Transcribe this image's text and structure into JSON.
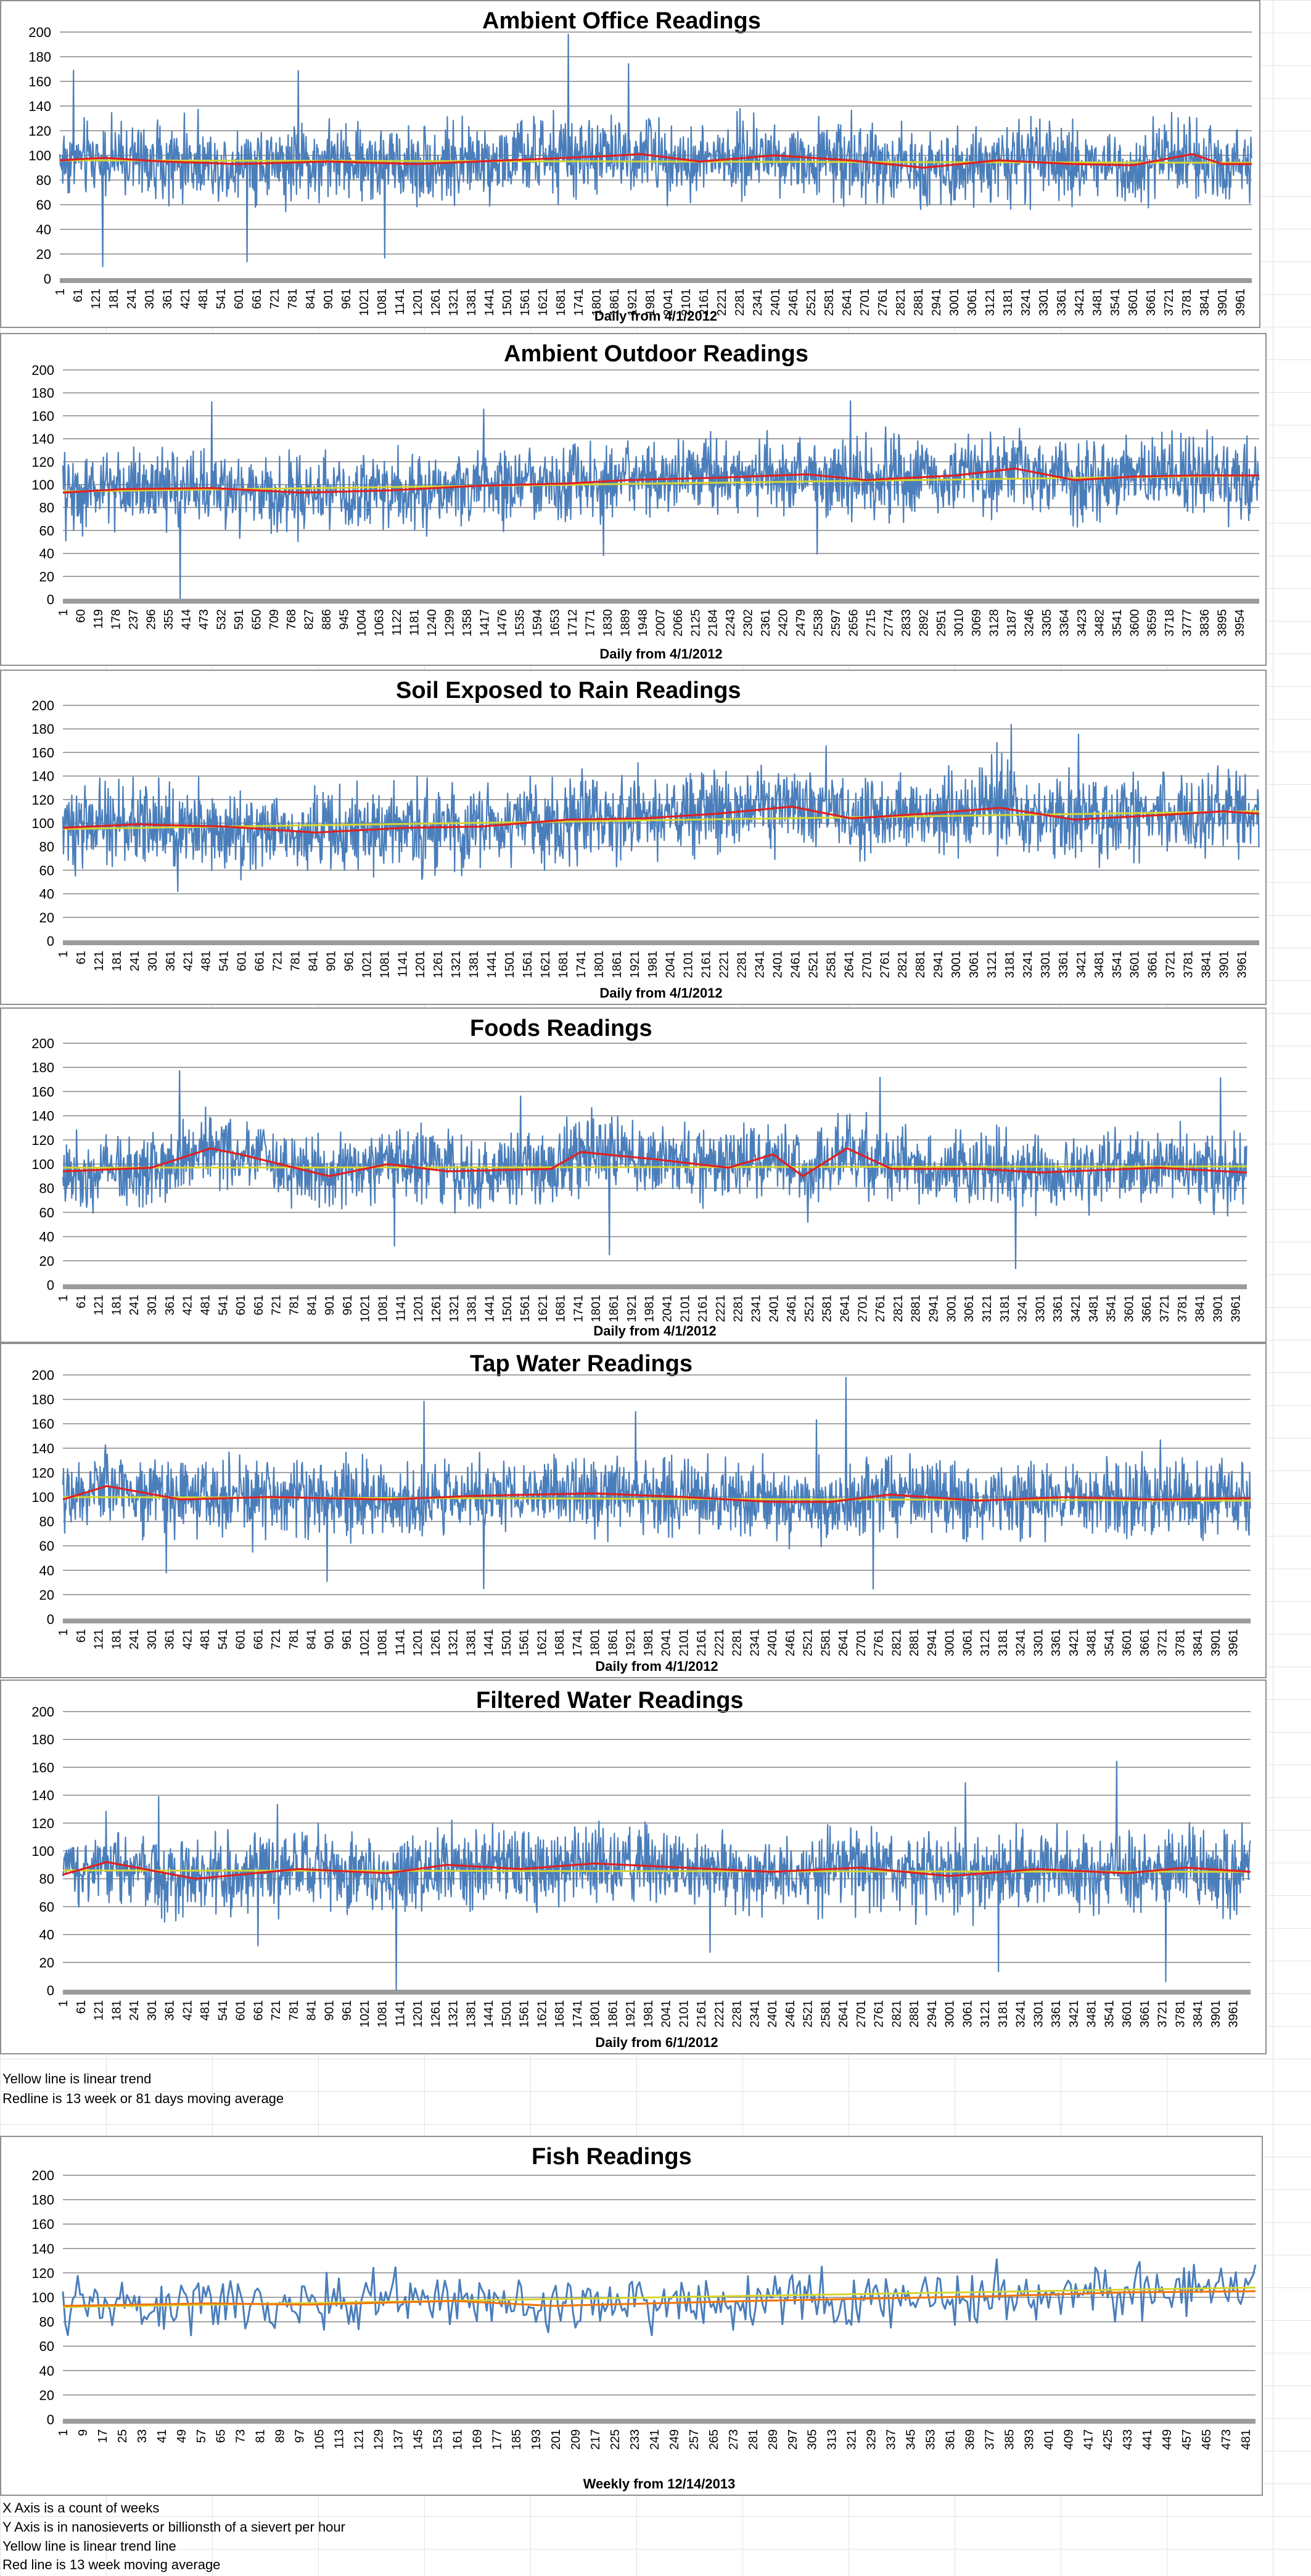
{
  "colors": {
    "series": "#4a7ebb",
    "moving_average": "#e02020",
    "moving_average_fish": "#f07810",
    "trend": "#d6d630",
    "gridline": "#868686",
    "axis_band": "#9b9b9b"
  },
  "notes_middle": [
    "Yellow line is linear trend",
    "Redline is 13 week or 81 days moving average"
  ],
  "notes_bottom": [
    "X Axis is a count of weeks",
    "Y Axis is in nanosieverts or billionsth of a sievert per hour",
    "Yellow line is linear trend line",
    "Red line is 13 week moving average"
  ],
  "chart_data": [
    {
      "type": "line",
      "title": "Ambient Office Readings",
      "xlabel": "Daily from 4/1/2012",
      "ylabel": "",
      "ylim": [
        0,
        200
      ],
      "yticks": [
        0,
        20,
        40,
        60,
        80,
        100,
        120,
        140,
        160,
        180,
        200
      ],
      "x_count": 4000,
      "x_tick_start": 1,
      "x_tick_step": 60,
      "x_ticks": [
        "1",
        "61",
        "121",
        "181",
        "241",
        "301",
        "361",
        "421",
        "481",
        "541",
        "601",
        "661",
        "721",
        "781",
        "841",
        "901",
        "961",
        "1021",
        "1081",
        "1141",
        "1201",
        "1261",
        "1321",
        "1381",
        "1441",
        "1501",
        "1561",
        "1621",
        "1681",
        "1741",
        "1801",
        "1861",
        "1921",
        "1981",
        "2041",
        "2101",
        "2161",
        "2221",
        "2281",
        "2341",
        "2401",
        "2461",
        "2521",
        "2581",
        "2641",
        "2701",
        "2761",
        "2821",
        "2881",
        "2941",
        "3001",
        "3061",
        "3121",
        "3181",
        "3241",
        "3301",
        "3361",
        "3421",
        "3481",
        "3541",
        "3601",
        "3661",
        "3721",
        "3781",
        "3841",
        "3901",
        "3961"
      ],
      "series_mean": 95,
      "series_spread": 22,
      "moving_average": [
        [
          1,
          96
        ],
        [
          150,
          98
        ],
        [
          350,
          95
        ],
        [
          600,
          93
        ],
        [
          900,
          95
        ],
        [
          1200,
          93
        ],
        [
          1500,
          96
        ],
        [
          1800,
          99
        ],
        [
          1950,
          101
        ],
        [
          2150,
          95
        ],
        [
          2400,
          100
        ],
        [
          2650,
          96
        ],
        [
          2900,
          90
        ],
        [
          3150,
          96
        ],
        [
          3400,
          93
        ],
        [
          3600,
          92
        ],
        [
          3800,
          101
        ],
        [
          3900,
          93
        ],
        [
          4000,
          93
        ]
      ],
      "trend": [
        96,
        94
      ]
    },
    {
      "type": "line",
      "title": "Ambient Outdoor Readings",
      "xlabel": "Daily from 4/1/2012",
      "ylabel": "",
      "ylim": [
        0,
        200
      ],
      "yticks": [
        0,
        20,
        40,
        60,
        80,
        100,
        120,
        140,
        160,
        180,
        200
      ],
      "x_count": 4020,
      "x_tick_start": 1,
      "x_tick_step": 59,
      "x_ticks": [
        "1",
        "60",
        "119",
        "178",
        "237",
        "296",
        "355",
        "414",
        "473",
        "532",
        "591",
        "650",
        "709",
        "768",
        "827",
        "886",
        "945",
        "1004",
        "1063",
        "1122",
        "1181",
        "1240",
        "1299",
        "1358",
        "1417",
        "1476",
        "1535",
        "1594",
        "1653",
        "1712",
        "1771",
        "1830",
        "1889",
        "1948",
        "2007",
        "2066",
        "2125",
        "2184",
        "2243",
        "2302",
        "2361",
        "2420",
        "2479",
        "2538",
        "2597",
        "2656",
        "2715",
        "2774",
        "2833",
        "2892",
        "2951",
        "3010",
        "3069",
        "3128",
        "3187",
        "3246",
        "3305",
        "3364",
        "3423",
        "3482",
        "3541",
        "3600",
        "3659",
        "3718",
        "3777",
        "3836",
        "3895",
        "3954"
      ],
      "series_mean": 100,
      "series_spread": 24,
      "moving_average": [
        [
          1,
          93
        ],
        [
          200,
          96
        ],
        [
          500,
          97
        ],
        [
          800,
          93
        ],
        [
          1100,
          95
        ],
        [
          1400,
          99
        ],
        [
          1700,
          101
        ],
        [
          1900,
          104
        ],
        [
          2200,
          106
        ],
        [
          2500,
          109
        ],
        [
          2700,
          104
        ],
        [
          3000,
          108
        ],
        [
          3200,
          114
        ],
        [
          3400,
          104
        ],
        [
          3600,
          107
        ],
        [
          3800,
          108
        ],
        [
          4020,
          108
        ]
      ],
      "trend": [
        94,
        108
      ]
    },
    {
      "type": "line",
      "title": "Soil Exposed to Rain Readings",
      "xlabel": "Daily from 4/1/2012",
      "ylabel": "",
      "ylim": [
        0,
        200
      ],
      "yticks": [
        0,
        20,
        40,
        60,
        80,
        100,
        120,
        140,
        160,
        180,
        200
      ],
      "x_count": 4020,
      "x_tick_start": 1,
      "x_tick_step": 60,
      "x_ticks": [
        "1",
        "61",
        "121",
        "181",
        "241",
        "301",
        "361",
        "421",
        "481",
        "541",
        "601",
        "661",
        "721",
        "781",
        "841",
        "901",
        "961",
        "1021",
        "1081",
        "1141",
        "1201",
        "1261",
        "1321",
        "1381",
        "1441",
        "1501",
        "1561",
        "1621",
        "1681",
        "1741",
        "1801",
        "1861",
        "1921",
        "1981",
        "2041",
        "2101",
        "2161",
        "2221",
        "2281",
        "2341",
        "2401",
        "2461",
        "2521",
        "2581",
        "2641",
        "2701",
        "2761",
        "2821",
        "2881",
        "2941",
        "3001",
        "3061",
        "3121",
        "3181",
        "3241",
        "3301",
        "3361",
        "3421",
        "3481",
        "3541",
        "3601",
        "3661",
        "3721",
        "3781",
        "3841",
        "3901",
        "3961"
      ],
      "series_mean": 102,
      "series_spread": 25,
      "moving_average": [
        [
          1,
          96
        ],
        [
          250,
          99
        ],
        [
          550,
          97
        ],
        [
          850,
          92
        ],
        [
          1150,
          96
        ],
        [
          1400,
          97
        ],
        [
          1700,
          103
        ],
        [
          1950,
          104
        ],
        [
          2200,
          108
        ],
        [
          2450,
          114
        ],
        [
          2650,
          104
        ],
        [
          2900,
          108
        ],
        [
          3150,
          113
        ],
        [
          3400,
          103
        ],
        [
          3700,
          107
        ],
        [
          3900,
          110
        ],
        [
          4020,
          108
        ]
      ],
      "trend": [
        95,
        110
      ]
    },
    {
      "type": "line",
      "title": "Foods Readings",
      "xlabel": "Daily from 4/1/2012",
      "ylabel": "",
      "ylim": [
        0,
        200
      ],
      "yticks": [
        0,
        20,
        40,
        60,
        80,
        100,
        120,
        140,
        160,
        180,
        200
      ],
      "x_count": 4000,
      "x_tick_start": 1,
      "x_tick_step": 60,
      "x_ticks": [
        "1",
        "61",
        "121",
        "181",
        "241",
        "301",
        "361",
        "421",
        "481",
        "541",
        "601",
        "661",
        "721",
        "781",
        "841",
        "901",
        "961",
        "1021",
        "1081",
        "1141",
        "1201",
        "1261",
        "1321",
        "1381",
        "1441",
        "1501",
        "1561",
        "1621",
        "1681",
        "1741",
        "1801",
        "1861",
        "1921",
        "1981",
        "2041",
        "2101",
        "2161",
        "2221",
        "2281",
        "2341",
        "2401",
        "2461",
        "2521",
        "2581",
        "2641",
        "2701",
        "2761",
        "2821",
        "2881",
        "2941",
        "3001",
        "3061",
        "3121",
        "3181",
        "3241",
        "3301",
        "3361",
        "3421",
        "3481",
        "3541",
        "3601",
        "3661",
        "3721",
        "3781",
        "3841",
        "3901",
        "3961"
      ],
      "series_mean": 98,
      "series_spread": 22,
      "moving_average": [
        [
          1,
          94
        ],
        [
          300,
          97
        ],
        [
          500,
          113
        ],
        [
          600,
          108
        ],
        [
          900,
          90
        ],
        [
          1100,
          100
        ],
        [
          1300,
          94
        ],
        [
          1650,
          96
        ],
        [
          1750,
          110
        ],
        [
          2000,
          104
        ],
        [
          2250,
          97
        ],
        [
          2400,
          108
        ],
        [
          2500,
          90
        ],
        [
          2650,
          113
        ],
        [
          2800,
          96
        ],
        [
          3100,
          96
        ],
        [
          3300,
          93
        ],
        [
          3700,
          97
        ],
        [
          4000,
          93
        ]
      ],
      "trend": [
        97,
        98
      ]
    },
    {
      "type": "line",
      "title": "Tap Water Readings",
      "xlabel": "Daily from 4/1/2012",
      "ylabel": "",
      "ylim": [
        0,
        200
      ],
      "yticks": [
        0,
        20,
        40,
        60,
        80,
        100,
        120,
        140,
        160,
        180,
        200
      ],
      "x_count": 4020,
      "x_tick_start": 1,
      "x_tick_step": 60,
      "x_ticks": [
        "1",
        "61",
        "121",
        "181",
        "241",
        "301",
        "361",
        "421",
        "481",
        "541",
        "601",
        "661",
        "721",
        "781",
        "841",
        "901",
        "961",
        "1021",
        "1081",
        "1141",
        "1201",
        "1261",
        "1321",
        "1381",
        "1441",
        "1501",
        "1561",
        "1621",
        "1681",
        "1741",
        "1801",
        "1861",
        "1921",
        "1981",
        "2041",
        "2101",
        "2161",
        "2221",
        "2281",
        "2341",
        "2401",
        "2461",
        "2521",
        "2581",
        "2641",
        "2701",
        "2761",
        "2821",
        "2881",
        "2941",
        "3001",
        "3061",
        "3121",
        "3181",
        "3241",
        "3301",
        "3361",
        "3421",
        "3481",
        "3541",
        "3601",
        "3661",
        "3721",
        "3781",
        "3841",
        "3901",
        "3961"
      ],
      "series_mean": 99,
      "series_spread": 22,
      "moving_average": [
        [
          1,
          98
        ],
        [
          150,
          109
        ],
        [
          400,
          98
        ],
        [
          700,
          100
        ],
        [
          1100,
          98
        ],
        [
          1400,
          101
        ],
        [
          1800,
          103
        ],
        [
          2100,
          100
        ],
        [
          2400,
          96
        ],
        [
          2600,
          96
        ],
        [
          2800,
          102
        ],
        [
          3100,
          97
        ],
        [
          3400,
          100
        ],
        [
          3700,
          98
        ],
        [
          4020,
          99
        ]
      ],
      "trend": [
        100,
        97
      ]
    },
    {
      "type": "line",
      "title": "Filtered Water Readings",
      "xlabel": "Daily from 6/1/2012",
      "ylabel": "",
      "ylim": [
        0,
        200
      ],
      "yticks": [
        0,
        20,
        40,
        60,
        80,
        100,
        120,
        140,
        160,
        180,
        200
      ],
      "x_count": 4020,
      "x_tick_start": 1,
      "x_tick_step": 60,
      "x_ticks": [
        "1",
        "61",
        "121",
        "181",
        "241",
        "301",
        "361",
        "421",
        "481",
        "541",
        "601",
        "661",
        "721",
        "781",
        "841",
        "901",
        "961",
        "1021",
        "1081",
        "1141",
        "1201",
        "1261",
        "1321",
        "1381",
        "1441",
        "1501",
        "1561",
        "1621",
        "1681",
        "1741",
        "1801",
        "1861",
        "1921",
        "1981",
        "2041",
        "2101",
        "2161",
        "2221",
        "2281",
        "2341",
        "2401",
        "2461",
        "2521",
        "2581",
        "2641",
        "2701",
        "2761",
        "2821",
        "2881",
        "2941",
        "3001",
        "3061",
        "3121",
        "3181",
        "3241",
        "3301",
        "3361",
        "3421",
        "3481",
        "3541",
        "3601",
        "3661",
        "3721",
        "3781",
        "3841",
        "3901",
        "3961"
      ],
      "series_mean": 86,
      "series_spread": 20,
      "moving_average": [
        [
          1,
          83
        ],
        [
          150,
          92
        ],
        [
          450,
          80
        ],
        [
          800,
          87
        ],
        [
          1100,
          84
        ],
        [
          1300,
          90
        ],
        [
          1550,
          87
        ],
        [
          1800,
          91
        ],
        [
          2100,
          88
        ],
        [
          2400,
          85
        ],
        [
          2700,
          88
        ],
        [
          3000,
          82
        ],
        [
          3300,
          87
        ],
        [
          3600,
          84
        ],
        [
          3800,
          88
        ],
        [
          4020,
          85
        ]
      ],
      "trend": [
        86,
        85
      ]
    },
    {
      "type": "line",
      "title": "Fish Readings",
      "xlabel": "Weekly from 12/14/2013",
      "ylabel": "",
      "ylim": [
        0,
        200
      ],
      "yticks": [
        0,
        20,
        40,
        60,
        80,
        100,
        120,
        140,
        160,
        180,
        200
      ],
      "x_count": 485,
      "x_tick_start": 1,
      "x_tick_step": 8,
      "x_ticks": [
        "1",
        "9",
        "17",
        "25",
        "33",
        "41",
        "49",
        "57",
        "65",
        "73",
        "81",
        "89",
        "97",
        "105",
        "113",
        "121",
        "129",
        "137",
        "145",
        "153",
        "161",
        "169",
        "177",
        "185",
        "193",
        "201",
        "209",
        "217",
        "225",
        "233",
        "241",
        "249",
        "257",
        "265",
        "273",
        "281",
        "289",
        "297",
        "305",
        "313",
        "321",
        "329",
        "337",
        "345",
        "353",
        "361",
        "369",
        "377",
        "385",
        "393",
        "401",
        "409",
        "417",
        "425",
        "433",
        "441",
        "449",
        "457",
        "465",
        "473",
        "481"
      ],
      "series_mean": 98,
      "series_spread": 17,
      "moving_average": [
        [
          1,
          93
        ],
        [
          60,
          95
        ],
        [
          100,
          94
        ],
        [
          160,
          97
        ],
        [
          200,
          93
        ],
        [
          280,
          97
        ],
        [
          330,
          99
        ],
        [
          380,
          101
        ],
        [
          430,
          104
        ],
        [
          485,
          105
        ]
      ],
      "trend": [
        92,
        108
      ]
    }
  ]
}
